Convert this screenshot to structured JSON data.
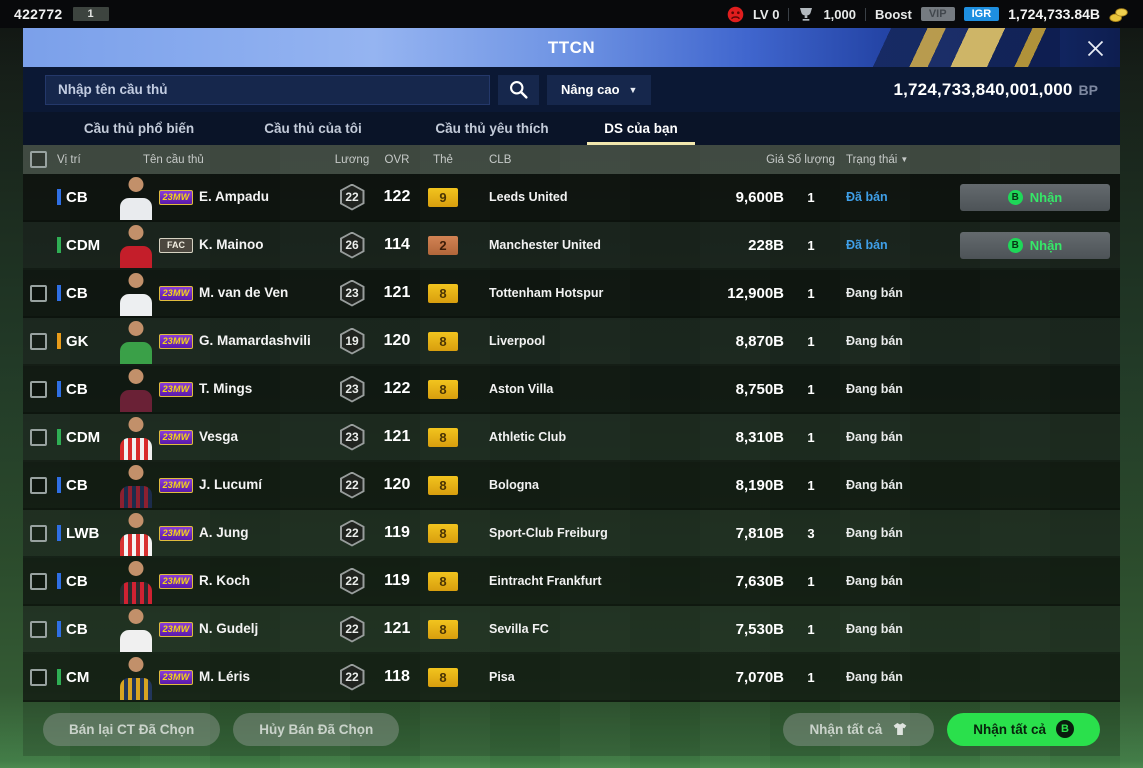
{
  "top_bar": {
    "user_id": "422772",
    "user_badge": "1",
    "level_label": "LV 0",
    "trophy_count": "1,000",
    "boost_label": "Boost",
    "vip_label": "VIP",
    "igr_label": "IGR",
    "currency_total": "1,724,733.84B"
  },
  "title_bar": {
    "title": "TTCN"
  },
  "search": {
    "placeholder": "Nhập tên cầu thủ",
    "advanced_label": "Nâng cao",
    "bp_amount": "1,724,733,840,001,000",
    "bp_unit": "BP"
  },
  "tabs": [
    {
      "label": "Cầu thủ phổ biến",
      "active": false
    },
    {
      "label": "Cầu thủ của tôi",
      "active": false
    },
    {
      "label": "Cầu thủ yêu thích",
      "active": false
    },
    {
      "label": "DS của bạn",
      "active": true
    }
  ],
  "table": {
    "headers": {
      "position": "Vị trí",
      "name": "Tên cầu thủ",
      "salary": "Lương",
      "ovr": "OVR",
      "card": "Thẻ",
      "club": "CLB",
      "price": "Giá",
      "quantity": "Số lượng",
      "status": "Trạng thái"
    },
    "rows": [
      {
        "selectable": false,
        "position": "CB",
        "pos_type": "def",
        "season": "23MW",
        "season_style": "purple",
        "name": "E. Ampadu",
        "salary": "22",
        "ovr": "122",
        "tier": "9",
        "tier_style": "gold",
        "club": "Leeds United",
        "price": "9,600B",
        "qty": "1",
        "status": "Đã bán",
        "status_type": "sold",
        "claim_label": "Nhận",
        "jersey": [
          "#e9ebee"
        ]
      },
      {
        "selectable": false,
        "position": "CDM",
        "pos_type": "mid",
        "season": "FAC",
        "season_style": "white",
        "name": "K. Mainoo",
        "salary": "26",
        "ovr": "114",
        "tier": "2",
        "tier_style": "bronze",
        "club": "Manchester United",
        "price": "228B",
        "qty": "1",
        "status": "Đã bán",
        "status_type": "sold",
        "claim_label": "Nhận",
        "jersey": [
          "#c41e2a"
        ]
      },
      {
        "selectable": true,
        "position": "CB",
        "pos_type": "def",
        "season": "23MW",
        "season_style": "purple",
        "name": "M. van de Ven",
        "salary": "23",
        "ovr": "121",
        "tier": "8",
        "tier_style": "gold",
        "club": "Tottenham Hotspur",
        "price": "12,900B",
        "qty": "1",
        "status": "Đang bán",
        "status_type": "selling",
        "claim_label": "",
        "jersey": [
          "#edeff1"
        ]
      },
      {
        "selectable": true,
        "position": "GK",
        "pos_type": "gk",
        "season": "23MW",
        "season_style": "purple",
        "name": "G. Mamardashvili",
        "salary": "19",
        "ovr": "120",
        "tier": "8",
        "tier_style": "gold",
        "club": "Liverpool",
        "price": "8,870B",
        "qty": "1",
        "status": "Đang bán",
        "status_type": "selling",
        "claim_label": "",
        "jersey": [
          "#3aa048"
        ]
      },
      {
        "selectable": true,
        "position": "CB",
        "pos_type": "def",
        "season": "23MW",
        "season_style": "purple",
        "name": "T. Mings",
        "salary": "23",
        "ovr": "122",
        "tier": "8",
        "tier_style": "gold",
        "club": "Aston Villa",
        "price": "8,750B",
        "qty": "1",
        "status": "Đang bán",
        "status_type": "selling",
        "claim_label": "",
        "jersey": [
          "#6a2136"
        ]
      },
      {
        "selectable": true,
        "position": "CDM",
        "pos_type": "mid",
        "season": "23MW",
        "season_style": "purple",
        "name": "Vesga",
        "salary": "23",
        "ovr": "121",
        "tier": "8",
        "tier_style": "gold",
        "club": "Athletic Club",
        "price": "8,310B",
        "qty": "1",
        "status": "Đang bán",
        "status_type": "selling",
        "claim_label": "",
        "jersey": [
          "#d82a2a",
          "#f0f0f0"
        ]
      },
      {
        "selectable": true,
        "position": "CB",
        "pos_type": "def",
        "season": "23MW",
        "season_style": "purple",
        "name": "J. Lucumí",
        "salary": "22",
        "ovr": "120",
        "tier": "8",
        "tier_style": "gold",
        "club": "Bologna",
        "price": "8,190B",
        "qty": "1",
        "status": "Đang bán",
        "status_type": "selling",
        "claim_label": "",
        "jersey": [
          "#8c2030",
          "#1c2c4c"
        ]
      },
      {
        "selectable": true,
        "position": "LWB",
        "pos_type": "def",
        "season": "23MW",
        "season_style": "purple",
        "name": "A. Jung",
        "salary": "22",
        "ovr": "119",
        "tier": "8",
        "tier_style": "gold",
        "club": "Sport-Club Freiburg",
        "price": "7,810B",
        "qty": "3",
        "status": "Đang bán",
        "status_type": "selling",
        "claim_label": "",
        "jersey": [
          "#d83232",
          "#f5f5f5"
        ]
      },
      {
        "selectable": true,
        "position": "CB",
        "pos_type": "def",
        "season": "23MW",
        "season_style": "purple",
        "name": "R. Koch",
        "salary": "22",
        "ovr": "119",
        "tier": "8",
        "tier_style": "gold",
        "club": "Eintracht Frankfurt",
        "price": "7,630B",
        "qty": "1",
        "status": "Đang bán",
        "status_type": "selling",
        "claim_label": "",
        "jersey": [
          "#2a2b2e",
          "#d02232"
        ]
      },
      {
        "selectable": true,
        "position": "CB",
        "pos_type": "def",
        "season": "23MW",
        "season_style": "purple",
        "name": "N. Gudelj",
        "salary": "22",
        "ovr": "121",
        "tier": "8",
        "tier_style": "gold",
        "club": "Sevilla FC",
        "price": "7,530B",
        "qty": "1",
        "status": "Đang bán",
        "status_type": "selling",
        "claim_label": "",
        "jersey": [
          "#f0f0f0"
        ]
      },
      {
        "selectable": true,
        "position": "CM",
        "pos_type": "mid",
        "season": "23MW",
        "season_style": "purple",
        "name": "M. Léris",
        "salary": "22",
        "ovr": "118",
        "tier": "8",
        "tier_style": "gold",
        "club": "Pisa",
        "price": "7,070B",
        "qty": "1",
        "status": "Đang bán",
        "status_type": "selling",
        "claim_label": "",
        "jersey": [
          "#d8a422",
          "#22365c"
        ]
      }
    ]
  },
  "footer": {
    "resell_label": "Bán lại CT Đã Chọn",
    "cancel_sale_label": "Hủy Bán Đã Chọn",
    "claim_all_disabled_label": "Nhận tất cả",
    "claim_all_label": "Nhận tất cả"
  },
  "colors": {
    "pos_def": "#2f6fe4",
    "pos_mid": "#2fae54",
    "pos_gk": "#e89c1a",
    "status_sold": "#3f9fe8",
    "igr_badge": "#1e8fe0",
    "tier_gold": "#e8b217",
    "tier_bronze": "#c8764a",
    "claim_green": "#2ae04c"
  }
}
